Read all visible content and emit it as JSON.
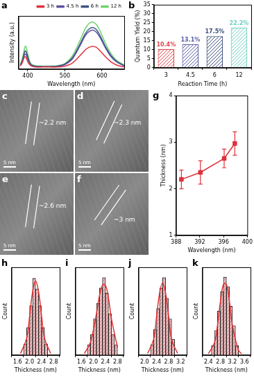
{
  "chart_data": [
    {
      "panel": "a",
      "type": "line",
      "x": [
        380,
        385,
        390,
        393,
        396,
        400,
        405,
        410,
        420,
        440,
        460,
        480,
        500,
        520,
        540,
        555,
        565,
        575,
        585,
        595,
        610,
        625,
        640,
        660
      ],
      "series": [
        {
          "name": "3 h",
          "color": "#e0303a",
          "values": [
            0.06,
            0.12,
            0.22,
            0.25,
            0.22,
            0.15,
            0.09,
            0.06,
            0.04,
            0.04,
            0.04,
            0.04,
            0.06,
            0.12,
            0.26,
            0.38,
            0.43,
            0.45,
            0.43,
            0.36,
            0.24,
            0.14,
            0.08,
            0.04
          ]
        },
        {
          "name": "4.5 h",
          "color": "#5a4fa0",
          "values": [
            0.07,
            0.14,
            0.26,
            0.3,
            0.28,
            0.2,
            0.11,
            0.07,
            0.05,
            0.05,
            0.05,
            0.05,
            0.09,
            0.2,
            0.45,
            0.66,
            0.74,
            0.77,
            0.73,
            0.62,
            0.41,
            0.24,
            0.14,
            0.06
          ]
        },
        {
          "name": "6 h",
          "color": "#3d5480",
          "values": [
            0.08,
            0.16,
            0.3,
            0.36,
            0.34,
            0.24,
            0.13,
            0.08,
            0.06,
            0.05,
            0.05,
            0.06,
            0.1,
            0.22,
            0.48,
            0.7,
            0.79,
            0.82,
            0.78,
            0.66,
            0.44,
            0.26,
            0.15,
            0.07
          ]
        },
        {
          "name": "12 h",
          "color": "#6dd36d",
          "values": [
            0.1,
            0.2,
            0.36,
            0.45,
            0.43,
            0.3,
            0.16,
            0.1,
            0.07,
            0.06,
            0.06,
            0.07,
            0.11,
            0.26,
            0.55,
            0.8,
            0.9,
            0.93,
            0.88,
            0.75,
            0.5,
            0.3,
            0.17,
            0.08
          ]
        }
      ],
      "xlabel": "Wavelength (nm)",
      "ylabel": "Intensity (a.u.)",
      "xlim": [
        375,
        660
      ],
      "xticks": [
        400,
        500,
        600
      ],
      "ylim": [
        0,
        1.05
      ],
      "tick_labels": "x",
      "legend": "upper right"
    },
    {
      "panel": "b",
      "type": "bar",
      "categories": [
        "3",
        "4.5",
        "6",
        "12"
      ],
      "values": [
        10.4,
        13.1,
        17.5,
        22.2
      ],
      "value_labels": [
        "10.4%",
        "13.1%",
        "17.5%",
        "22.2%"
      ],
      "colors": [
        "#e2474f",
        "#5b5ea6",
        "#3c4f7a",
        "#6fcfc2"
      ],
      "xlabel": "Reaction Time (h)",
      "ylabel": "Quantum Yield (%)",
      "ylim": [
        0,
        35
      ],
      "yticks": [
        0,
        5,
        10,
        15,
        20,
        25,
        30,
        35
      ],
      "data_labels": true
    },
    {
      "panel": "g",
      "type": "line",
      "x": [
        388.9,
        392.1,
        396.1,
        397.9
      ],
      "values": [
        2.2,
        2.35,
        2.65,
        2.97
      ],
      "errors": [
        0.2,
        0.25,
        0.2,
        0.25
      ],
      "color": "#e0303a",
      "marker": "square",
      "xlabel": "Wavelength (nm)",
      "ylabel": "Thickness (nm)",
      "xlim": [
        388,
        400
      ],
      "xticks": [
        388,
        392,
        396,
        400
      ],
      "ylim": [
        1,
        4
      ],
      "yticks": [
        1,
        2,
        3,
        4
      ]
    },
    {
      "panel": "h",
      "type": "histogram",
      "bins": [
        1.8,
        1.9,
        2.0,
        2.1,
        2.2,
        2.3,
        2.4,
        2.5,
        2.6
      ],
      "counts": [
        2,
        5,
        9,
        14,
        12,
        9,
        5,
        2
      ],
      "fit": {
        "x": [
          1.7,
          1.9,
          2.0,
          2.1,
          2.2,
          2.3,
          2.4,
          2.5,
          2.7
        ],
        "values": [
          0.3,
          3,
          7,
          11.5,
          13.5,
          11.5,
          7,
          3,
          0.3
        ],
        "color": "#e03030"
      },
      "color": "#f4c3c6",
      "xlabel": "Thickness (nm)",
      "ylabel": "Count",
      "xlim": [
        1.6,
        2.8
      ],
      "xticks": [
        1.6,
        {
          "value": 2,
          "label": "2.0"
        },
        2.4,
        2.8
      ],
      "ylim": [
        0,
        16
      ],
      "tick_labels": "x"
    },
    {
      "panel": "i",
      "type": "histogram",
      "bins": [
        1.8,
        1.9,
        2.0,
        2.1,
        2.2,
        2.3,
        2.4,
        2.5,
        2.6,
        2.7,
        2.8
      ],
      "counts": [
        2,
        4,
        7,
        10,
        13,
        15,
        12,
        8,
        4,
        2
      ],
      "fit": {
        "x": [
          1.7,
          1.9,
          2.1,
          2.2,
          2.3,
          2.4,
          2.5,
          2.6,
          2.8
        ],
        "values": [
          0.3,
          2.5,
          8,
          11.5,
          13.5,
          13.5,
          11,
          7,
          1.5
        ],
        "color": "#e03030"
      },
      "color": "#f4c3c6",
      "xlabel": "Thickness (nm)",
      "ylabel": "Count",
      "xlim": [
        1.6,
        2.8
      ],
      "xticks": [
        1.6,
        {
          "value": 2,
          "label": "2.0"
        },
        2.4,
        2.8
      ],
      "ylim": [
        0,
        17
      ],
      "tick_labels": "x"
    },
    {
      "panel": "j",
      "type": "histogram",
      "bins": [
        2.2,
        2.3,
        2.4,
        2.5,
        2.6,
        2.7,
        2.8,
        2.9,
        3.0
      ],
      "counts": [
        2,
        5,
        9,
        13,
        15,
        11,
        7,
        3
      ],
      "fit": {
        "x": [
          2.1,
          2.3,
          2.4,
          2.5,
          2.6,
          2.7,
          2.8,
          2.9,
          3.1
        ],
        "values": [
          0.3,
          3,
          7.5,
          12,
          14,
          12,
          7.5,
          3,
          0.3
        ],
        "color": "#e03030"
      },
      "color": "#f4c3c6",
      "xlabel": "Thickness (nm)",
      "ylabel": "Count",
      "xlim": [
        2,
        3.2
      ],
      "xticks": [
        {
          "value": 2,
          "label": "2.0"
        },
        2.4,
        2.8,
        3.2
      ],
      "ylim": [
        0,
        17
      ],
      "tick_labels": "x"
    },
    {
      "panel": "k",
      "type": "histogram",
      "bins": [
        2.5,
        2.6,
        2.7,
        2.8,
        2.9,
        3.0,
        3.1,
        3.2,
        3.3,
        3.4
      ],
      "counts": [
        2,
        5,
        9,
        13,
        16,
        14,
        10,
        6,
        2
      ],
      "fit": {
        "x": [
          2.4,
          2.6,
          2.7,
          2.8,
          2.9,
          3.0,
          3.1,
          3.2,
          3.4,
          3.5
        ],
        "values": [
          0.3,
          2.5,
          6,
          11,
          14.5,
          14.5,
          11,
          6,
          1,
          0.3
        ],
        "color": "#e03030"
      },
      "color": "#f4c3c6",
      "xlabel": "Thickness (nm)",
      "ylabel": "Count",
      "xlim": [
        2.4,
        3.6
      ],
      "xticks": [
        2.4,
        2.8,
        3.2,
        3.6
      ],
      "ylim": [
        0,
        18
      ],
      "tick_labels": "x"
    }
  ],
  "images": [
    {
      "panel": "c",
      "annotation": "~2.2 nm",
      "scale_bar": "5 nm"
    },
    {
      "panel": "d",
      "annotation": "~2.3 nm",
      "scale_bar": "5 nm"
    },
    {
      "panel": "e",
      "annotation": "~2.6 nm",
      "scale_bar": "5 nm"
    },
    {
      "panel": "f",
      "annotation": "~3 nm",
      "scale_bar": "5 nm"
    }
  ]
}
